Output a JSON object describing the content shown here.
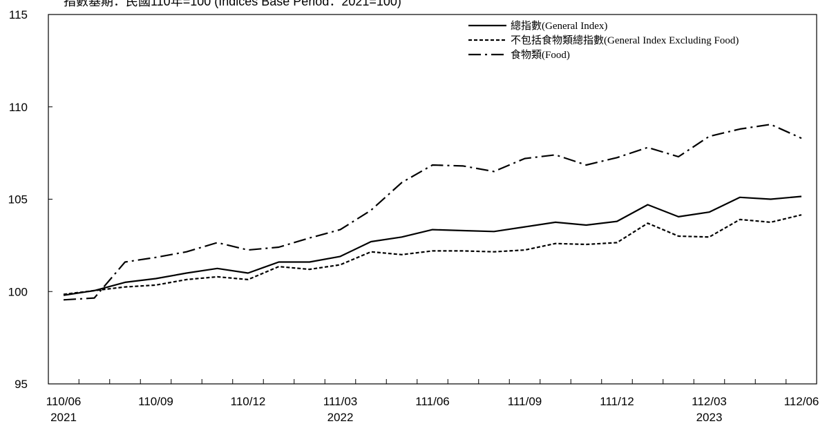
{
  "chart_data": {
    "type": "line",
    "title": "指數基期：民國110年=100 (Indices Base Period：2021=100)",
    "ylim": [
      95,
      115
    ],
    "yticks": [
      "95",
      "100",
      "105",
      "110",
      "115"
    ],
    "x": [
      "110/06",
      "110/07",
      "110/08",
      "110/09",
      "110/10",
      "110/11",
      "110/12",
      "111/01",
      "111/02",
      "111/03",
      "111/04",
      "111/05",
      "111/06",
      "111/07",
      "111/08",
      "111/09",
      "111/10",
      "111/11",
      "111/12",
      "112/01",
      "112/02",
      "112/03",
      "112/04",
      "112/05",
      "112/06"
    ],
    "xtick_labels": [
      {
        "month": "110/06",
        "year": "2021"
      },
      {
        "month": "110/09",
        "year": ""
      },
      {
        "month": "110/12",
        "year": ""
      },
      {
        "month": "111/03",
        "year": "2022"
      },
      {
        "month": "111/06",
        "year": ""
      },
      {
        "month": "111/09",
        "year": ""
      },
      {
        "month": "111/12",
        "year": ""
      },
      {
        "month": "112/03",
        "year": "2023"
      },
      {
        "month": "112/06",
        "year": ""
      }
    ],
    "series": [
      {
        "name": "總指數(General Index)",
        "dash": "solid",
        "values": [
          99.8,
          100.05,
          100.5,
          100.7,
          101.0,
          101.25,
          101.0,
          101.6,
          101.6,
          101.9,
          102.7,
          102.95,
          103.35,
          103.3,
          103.25,
          103.5,
          103.75,
          103.6,
          103.8,
          104.7,
          104.05,
          104.3,
          105.1,
          105.0,
          105.15
        ]
      },
      {
        "name": "不包括食物類總指數(General Index Excluding Food)",
        "dash": "dashed",
        "values": [
          99.85,
          100.05,
          100.25,
          100.35,
          100.65,
          100.8,
          100.65,
          101.35,
          101.2,
          101.45,
          102.15,
          102.0,
          102.2,
          102.2,
          102.15,
          102.25,
          102.6,
          102.55,
          102.65,
          103.7,
          103.0,
          102.95,
          103.9,
          103.75,
          104.15
        ]
      },
      {
        "name": "食物類(Food)",
        "dash": "dashdot",
        "values": [
          99.55,
          99.65,
          101.6,
          101.85,
          102.15,
          102.65,
          102.25,
          102.4,
          102.9,
          103.35,
          104.4,
          105.9,
          106.85,
          106.8,
          106.5,
          107.2,
          107.4,
          106.85,
          107.25,
          107.8,
          107.3,
          108.4,
          108.8,
          109.05,
          108.3
        ]
      }
    ],
    "grid": false,
    "legend_position": "top-right"
  }
}
